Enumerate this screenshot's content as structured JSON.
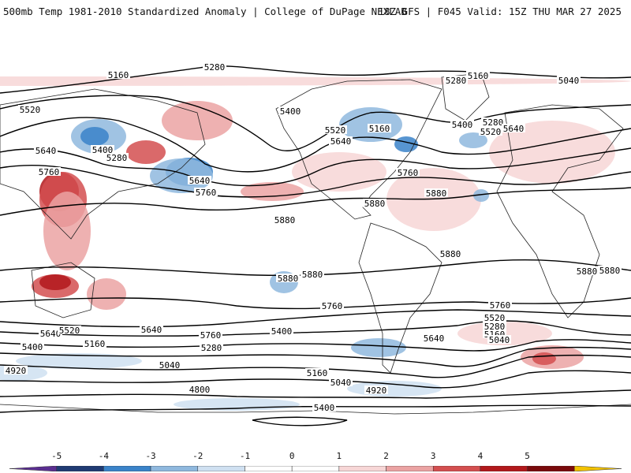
{
  "header": {
    "title": "500mb Temp 1981-2010 Standardized Anomaly | College of DuPage NEXLAB",
    "run_info": "18Z GFS | F045 Valid: 15Z THU MAR 27 2025"
  },
  "map": {
    "contour_labels": [
      "5160",
      "5280",
      "5520",
      "5640",
      "5400",
      "5280",
      "5760",
      "5640",
      "5760",
      "5880",
      "5400",
      "5520",
      "5640",
      "5160",
      "5280",
      "5160",
      "5040",
      "5400",
      "5280",
      "5520",
      "5640",
      "5760",
      "5880",
      "5880",
      "5880",
      "5880",
      "5880",
      "5880",
      "5760",
      "5760",
      "5640",
      "5520",
      "5400",
      "5160",
      "5640",
      "5760",
      "5280",
      "5400",
      "5040",
      "5160",
      "4920",
      "5040",
      "4920",
      "4800",
      "5400",
      "5640",
      "5520",
      "5280",
      "5160",
      "5040",
      "5880"
    ],
    "colors": {
      "contour": "#000000",
      "neg_5": "#5a2e91",
      "neg_4": "#1f3b73",
      "neg_3": "#3a83c9",
      "neg_2": "#8fb8de",
      "neg_1": "#cfe0f1",
      "pos_1": "#f7d6d6",
      "pos_2": "#eba3a3",
      "pos_3": "#d44f50",
      "pos_4": "#b2181b",
      "pos_5": "#7a0a0c",
      "pos_max": "#f2c200"
    }
  },
  "colorbar": {
    "labels": [
      "-5",
      "-4",
      "-3",
      "-2",
      "-1",
      "0",
      "1",
      "2",
      "3",
      "4",
      "5"
    ],
    "colors": [
      "#5a2e91",
      "#1f3b73",
      "#3a83c9",
      "#8fb8de",
      "#cfe0f1",
      "#ffffff",
      "#ffffff",
      "#f7d6d6",
      "#eba3a3",
      "#d44f50",
      "#b2181b",
      "#7a0a0c",
      "#f2c200"
    ]
  }
}
